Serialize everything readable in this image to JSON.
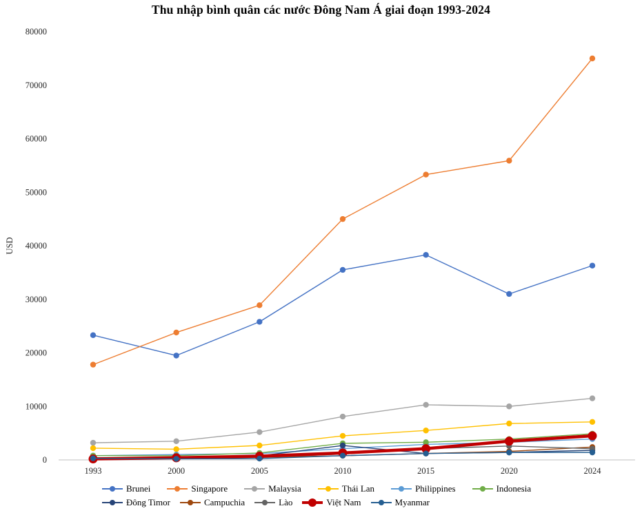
{
  "chart_data": {
    "type": "line",
    "title": "Thu nhập bình quân các nước Đông Nam Á giai đoạn 1993-2024",
    "ylabel": "USD",
    "xlabel": "",
    "categories": [
      "1993",
      "2000",
      "2005",
      "2010",
      "2015",
      "2020",
      "2024"
    ],
    "ylim": [
      0,
      80000
    ],
    "yticks": [
      0,
      10000,
      20000,
      30000,
      40000,
      50000,
      60000,
      70000,
      80000
    ],
    "grid": false,
    "legend_position": "bottom",
    "series": [
      {
        "name": "Brunei",
        "color": "#4472C4",
        "values": [
          23300,
          19500,
          25800,
          35500,
          38300,
          31000,
          36300
        ]
      },
      {
        "name": "Singapore",
        "color": "#ED7D31",
        "values": [
          17800,
          23800,
          28900,
          45000,
          53300,
          55900,
          75000
        ]
      },
      {
        "name": "Malaysia",
        "color": "#A5A5A5",
        "values": [
          3200,
          3500,
          5200,
          8100,
          10300,
          10000,
          11500
        ]
      },
      {
        "name": "Thái Lan",
        "color": "#FFC000",
        "values": [
          2200,
          2000,
          2700,
          4500,
          5500,
          6800,
          7100
        ]
      },
      {
        "name": "Philippines",
        "color": "#5B9BD5",
        "values": [
          800,
          1000,
          1200,
          2100,
          2900,
          3300,
          3900
        ]
      },
      {
        "name": "Indonesia",
        "color": "#70AD47",
        "values": [
          800,
          800,
          1300,
          3100,
          3300,
          3900,
          4900
        ]
      },
      {
        "name": "Đông Timor",
        "color": "#264478",
        "values": [
          400,
          400,
          750,
          2700,
          1200,
          1400,
          1800
        ]
      },
      {
        "name": "Campuchia",
        "color": "#9E480E",
        "values": [
          250,
          300,
          470,
          780,
          1200,
          1600,
          2400
        ]
      },
      {
        "name": "Lào",
        "color": "#636363",
        "values": [
          300,
          330,
          470,
          1100,
          2100,
          2600,
          2100
        ]
      },
      {
        "name": "Việt Nam",
        "color": "#C00000",
        "values": [
          185,
          400,
          700,
          1300,
          2100,
          3500,
          4500
        ],
        "emphasis": true
      },
      {
        "name": "Myanmar",
        "color": "#255E91",
        "values": [
          300,
          200,
          250,
          800,
          1200,
          1400,
          1400
        ]
      }
    ],
    "axis_color": "#BFBFBF",
    "tick_label_color": "#262626"
  }
}
